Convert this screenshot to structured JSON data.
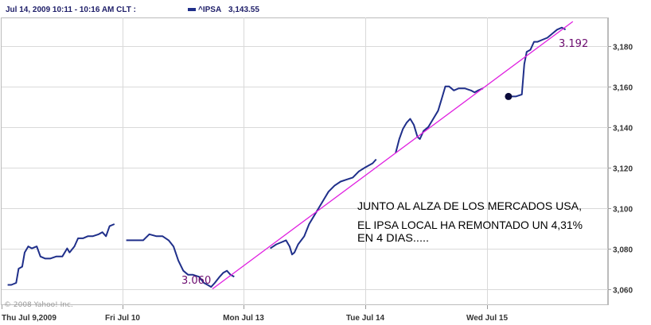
{
  "header": {
    "date_range": "Jul 14, 2009 10:11 - 10:16 AM CLT :",
    "legend_symbol": "^IPSA",
    "legend_value": "3,143.55"
  },
  "copyright": "© 2008 Yahoo! Inc.",
  "annotations": {
    "start_value": "3.060",
    "end_value": "3.192",
    "callout_lines": [
      "JUNTO AL ALZA DE LOS MERCADOS USA,",
      "EL IPSA LOCAL HA REMONTADO UN 4,31%",
      "EN 4 DIAS....."
    ]
  },
  "colors": {
    "series": "#1f2f8a",
    "trendline": "#e020e0",
    "grid": "#d9d9d9",
    "frame": "#bbbbbb",
    "annotation_text": "#6b0a6e",
    "marker": "#0a0a3a"
  },
  "chart_data": {
    "type": "line",
    "title": "",
    "xlabel": "",
    "ylabel": "",
    "x_ticks": [
      "Thu Jul 9,2009",
      "Fri Jul 10",
      "Mon Jul 13",
      "Tue Jul 14",
      "Wed Jul 15"
    ],
    "y_ticks": [
      3060,
      3080,
      3100,
      3120,
      3140,
      3160,
      3180
    ],
    "y_tick_labels": [
      "3,060",
      "3,080",
      "3,100",
      "3,120",
      "3,140",
      "3,160",
      "3,180"
    ],
    "ylim": [
      3052,
      3194
    ],
    "grid": true,
    "legend": "top-left",
    "series": [
      {
        "name": "^IPSA",
        "segments": [
          [
            [
              0.05,
              3062
            ],
            [
              0.08,
              3062
            ],
            [
              0.12,
              3063
            ],
            [
              0.14,
              3070
            ],
            [
              0.17,
              3071
            ],
            [
              0.19,
              3078
            ],
            [
              0.22,
              3081
            ],
            [
              0.25,
              3080
            ],
            [
              0.29,
              3081
            ],
            [
              0.32,
              3076
            ],
            [
              0.36,
              3075
            ],
            [
              0.4,
              3075
            ],
            [
              0.45,
              3076
            ],
            [
              0.5,
              3076
            ],
            [
              0.54,
              3080
            ],
            [
              0.56,
              3078
            ],
            [
              0.6,
              3081
            ],
            [
              0.63,
              3085
            ],
            [
              0.67,
              3085
            ],
            [
              0.71,
              3086
            ],
            [
              0.75,
              3086
            ],
            [
              0.8,
              3087
            ],
            [
              0.83,
              3088
            ],
            [
              0.86,
              3086
            ],
            [
              0.89,
              3091
            ],
            [
              0.93,
              3092
            ]
          ],
          [
            [
              1.03,
              3084
            ],
            [
              1.1,
              3084
            ],
            [
              1.17,
              3084
            ],
            [
              1.22,
              3087
            ],
            [
              1.28,
              3086
            ],
            [
              1.33,
              3086
            ],
            [
              1.38,
              3084
            ],
            [
              1.42,
              3081
            ],
            [
              1.46,
              3074
            ],
            [
              1.5,
              3069
            ],
            [
              1.54,
              3067
            ],
            [
              1.58,
              3067
            ],
            [
              1.63,
              3066
            ],
            [
              1.67,
              3063
            ],
            [
              1.7,
              3062
            ],
            [
              1.73,
              3061
            ],
            [
              1.76,
              3063
            ],
            [
              1.8,
              3066
            ],
            [
              1.83,
              3068
            ],
            [
              1.86,
              3069
            ],
            [
              1.89,
              3067
            ],
            [
              1.92,
              3066
            ]
          ],
          [
            [
              2.22,
              3080
            ],
            [
              2.27,
              3082
            ],
            [
              2.31,
              3083
            ],
            [
              2.35,
              3084
            ],
            [
              2.38,
              3081
            ],
            [
              2.4,
              3077
            ],
            [
              2.42,
              3078
            ],
            [
              2.45,
              3082
            ],
            [
              2.5,
              3086
            ],
            [
              2.54,
              3092
            ],
            [
              2.58,
              3096
            ],
            [
              2.62,
              3100
            ],
            [
              2.66,
              3104
            ],
            [
              2.7,
              3108
            ],
            [
              2.75,
              3111
            ],
            [
              2.8,
              3113
            ],
            [
              2.85,
              3114
            ],
            [
              2.9,
              3115
            ],
            [
              2.95,
              3118
            ],
            [
              3.0,
              3120
            ],
            [
              3.06,
              3122
            ],
            [
              3.09,
              3124
            ]
          ],
          [
            [
              3.25,
              3127
            ],
            [
              3.28,
              3134
            ],
            [
              3.31,
              3139
            ],
            [
              3.34,
              3142
            ],
            [
              3.37,
              3144
            ],
            [
              3.4,
              3141
            ],
            [
              3.43,
              3135
            ],
            [
              3.45,
              3134
            ],
            [
              3.48,
              3138
            ],
            [
              3.52,
              3140
            ],
            [
              3.56,
              3144
            ],
            [
              3.6,
              3148
            ],
            [
              3.63,
              3154
            ],
            [
              3.66,
              3160
            ],
            [
              3.69,
              3160
            ],
            [
              3.73,
              3158
            ],
            [
              3.77,
              3159
            ],
            [
              3.82,
              3159
            ],
            [
              3.87,
              3158
            ],
            [
              3.9,
              3157
            ],
            [
              3.93,
              3158
            ],
            [
              3.97,
              3159
            ]
          ],
          [
            [
              4.2,
              3155
            ],
            [
              4.24,
              3155
            ],
            [
              4.29,
              3156
            ],
            [
              4.31,
              3171
            ],
            [
              4.33,
              3177
            ],
            [
              4.36,
              3178
            ],
            [
              4.39,
              3182
            ],
            [
              4.42,
              3182
            ],
            [
              4.46,
              3183
            ],
            [
              4.5,
              3184
            ],
            [
              4.54,
              3186
            ],
            [
              4.58,
              3188
            ],
            [
              4.62,
              3189
            ],
            [
              4.65,
              3188
            ]
          ]
        ]
      }
    ],
    "trendline": {
      "name": "",
      "from": [
        1.74,
        3060
      ],
      "to": [
        4.71,
        3192
      ]
    },
    "marker": {
      "x": 4.18,
      "y": 3155
    }
  }
}
